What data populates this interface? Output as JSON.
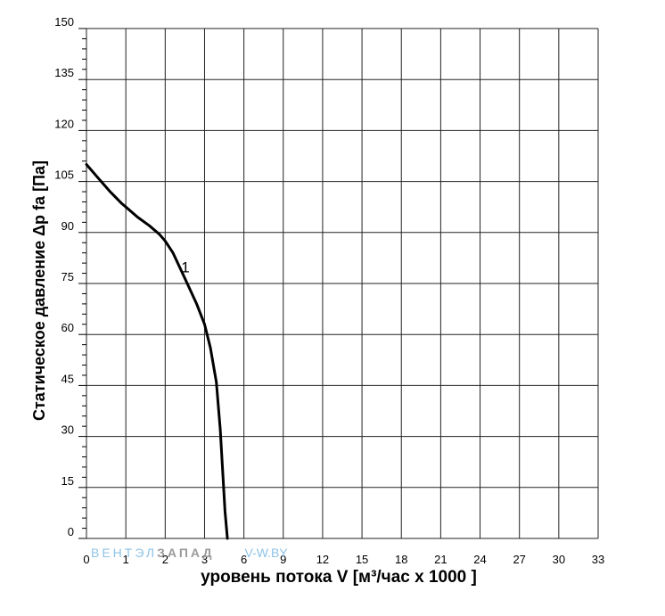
{
  "chart_data": {
    "type": "line",
    "ylabel": "Статическое давление  Δp fa [Па]",
    "xlabel": "уровень потока  V [м³/час x 1000 ]",
    "x_ticks": [
      "0",
      "1",
      "2",
      "3",
      "6",
      "9",
      "12",
      "15",
      "18",
      "21",
      "24",
      "27",
      "30",
      "33"
    ],
    "y_ticks": [
      "0",
      "15",
      "30",
      "45",
      "60",
      "75",
      "90",
      "105",
      "120",
      "135",
      "150"
    ],
    "ylim": [
      0,
      150
    ],
    "grid": true,
    "watermark": {
      "part1": "ВЕНТЭЛ",
      "part2": "ЗАПАД",
      "part3": "V-W.BY",
      "color1": "#8ec3e6",
      "color2": "#9a9a9a",
      "color3": "#8ec3e6"
    },
    "series": [
      {
        "name": "1",
        "x_tick_index": [
          0,
          0.3,
          0.6,
          0.9,
          1.0,
          1.3,
          1.6,
          1.85,
          2.0,
          2.2,
          2.5,
          2.8,
          3.0,
          3.15,
          3.3,
          3.4,
          3.47,
          3.52,
          3.58
        ],
        "values": [
          110,
          106,
          102,
          98.5,
          97.5,
          94.5,
          92,
          89.5,
          87.5,
          84,
          76.5,
          69,
          63,
          56,
          46,
          32,
          18,
          8,
          0
        ]
      }
    ],
    "colors": {
      "line": "#000000",
      "grid": "#222222",
      "background": "#ffffff"
    }
  }
}
